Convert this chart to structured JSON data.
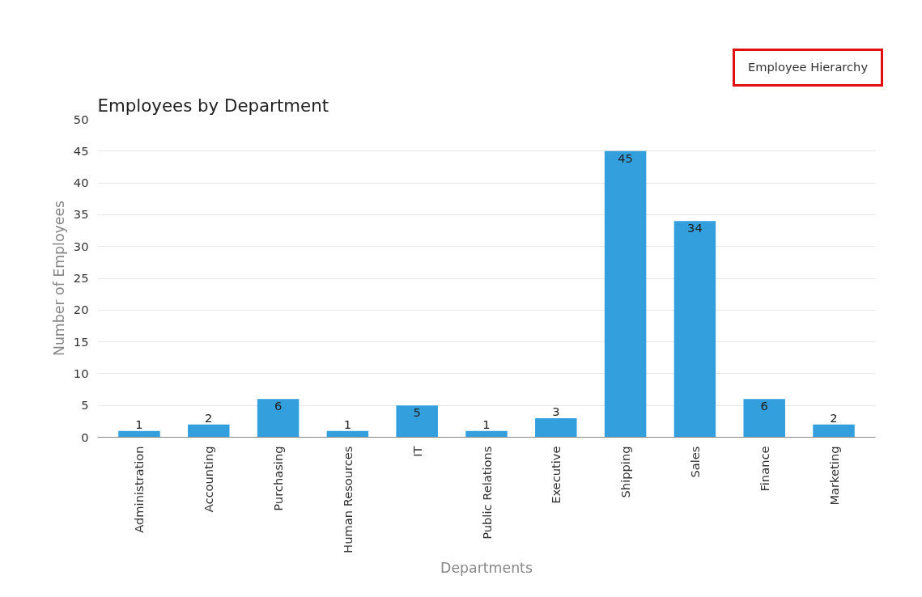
{
  "chart_data": {
    "type": "bar",
    "title": "Employees by Department",
    "xlabel": "Departments",
    "ylabel": "Number of Employees",
    "categories": [
      "Administration",
      "Accounting",
      "Purchasing",
      "Human Resources",
      "IT",
      "Public Relations",
      "Executive",
      "Shipping",
      "Sales",
      "Finance",
      "Marketing"
    ],
    "values": [
      1,
      2,
      6,
      1,
      5,
      1,
      3,
      45,
      34,
      6,
      2
    ],
    "color": "#339fdc",
    "ylim": [
      0,
      50
    ],
    "yticks": [
      0,
      5,
      10,
      15,
      20,
      25,
      30,
      35,
      40,
      45,
      50
    ],
    "grid": "y",
    "data_labels": true,
    "annotations": [
      "Employee Hierarchy"
    ]
  }
}
